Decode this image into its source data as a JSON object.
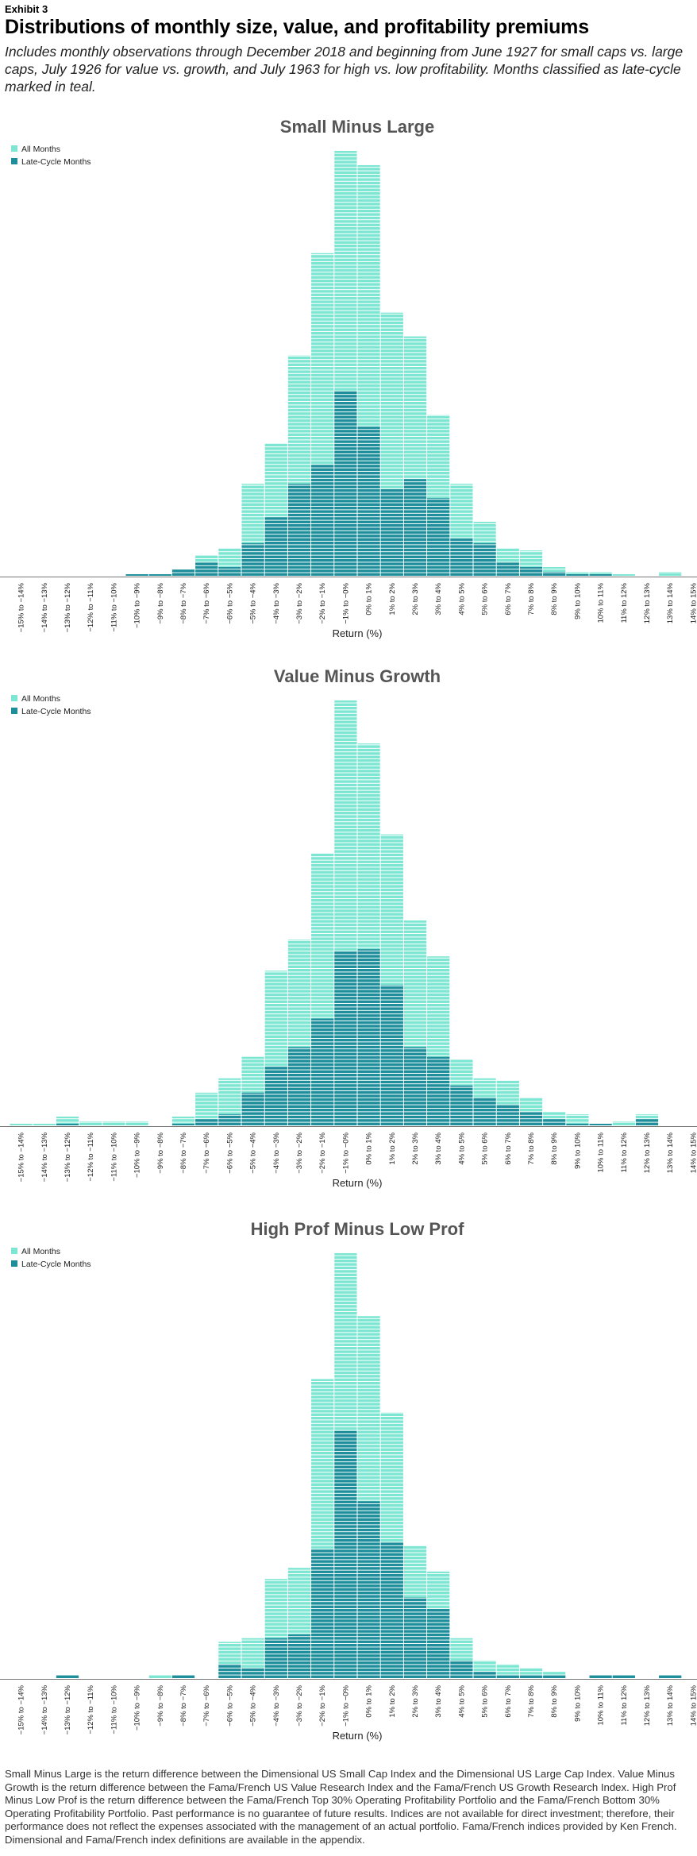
{
  "header": {
    "exhibit": "Exhibit 3",
    "title": "Distributions of monthly size, value, and profitability premiums",
    "subtitle": "Includes monthly observations through December 2018 and beginning from June 1927 for small caps vs. large caps, July 1926 for value vs. growth, and July 1963 for high vs. low profitability. Months classified as late-cycle marked in teal."
  },
  "colors": {
    "all": "#7ce6d2",
    "late": "#1f8e9b",
    "axis": "#777777",
    "title": "#555555"
  },
  "footnote": "Small Minus Large is the return difference between the Dimensional US Small Cap Index and the Dimensional US Large Cap Index. Value Minus Growth is the return difference between the Fama/French US Value Research Index and the Fama/French US Growth Research Index. High Prof Minus Low Prof is the return difference between the Fama/French Top 30% Operating Profitability Portfolio and the Fama/French Bottom 30% Operating Profitability Portfolio. Past performance is no guarantee of future results. Indices are not available for direct investment; therefore, their performance does not reflect the expenses associated with the management of an actual portfolio. Fama/French indices provided by Ken French. Dimensional and Fama/French index definitions are available in the appendix.",
  "chart_data": [
    {
      "type": "bar",
      "title": "Small Minus Large",
      "xlabel": "Return (%)",
      "legend": [
        "All Months",
        "Late-Cycle Months"
      ],
      "legend_position": "top-left",
      "categories": [
        "−15% to −14%",
        "−14% to −13%",
        "−13% to −12%",
        "−12% to −11%",
        "−11% to −10%",
        "−10% to −9%",
        "−9% to −8%",
        "−8% to −7%",
        "−7% to −6%",
        "−6% to −5%",
        "−5% to −4%",
        "−4% to −3%",
        "−3% to −2%",
        "−2% to −1%",
        "−1% to −0%",
        "0% to 1%",
        "1% to 2%",
        "2% to 3%",
        "3% to 4%",
        "4% to 5%",
        "5% to 6%",
        "6% to 7%",
        "7% to 8%",
        "8% to 9%",
        "9% to 10%",
        "10% to 11%",
        "11% to 12%",
        "12% to 13%",
        "13% to 14%",
        "14% to 15%"
      ],
      "series": [
        {
          "name": "All Months",
          "values": [
            0,
            0,
            0,
            0,
            0,
            1,
            1,
            3,
            9,
            12,
            39,
            56,
            93,
            136,
            179,
            173,
            111,
            101,
            68,
            39,
            23,
            12,
            11,
            4,
            2,
            2,
            1,
            0,
            2,
            0
          ]
        },
        {
          "name": "Late-Cycle Months",
          "values": [
            0,
            0,
            0,
            0,
            0,
            1,
            1,
            3,
            6,
            4,
            14,
            25,
            39,
            47,
            78,
            63,
            37,
            41,
            33,
            16,
            14,
            6,
            4,
            2,
            1,
            1,
            0,
            0,
            0,
            0
          ]
        }
      ]
    },
    {
      "type": "bar",
      "title": "Value Minus Growth",
      "xlabel": "Return (%)",
      "legend": [
        "All Months",
        "Late-Cycle Months"
      ],
      "legend_position": "top-left",
      "categories": [
        "−15% to −14%",
        "−14% to −13%",
        "−13% to −12%",
        "−12% to −11%",
        "−11% to −10%",
        "−10% to −9%",
        "−9% to −8%",
        "−8% to −7%",
        "−7% to −6%",
        "−6% to −5%",
        "−5% to −4%",
        "−4% to −3%",
        "−3% to −2%",
        "−2% to −1%",
        "−1% to −0%",
        "0% to 1%",
        "1% to 2%",
        "2% to 3%",
        "3% to 4%",
        "4% to 5%",
        "5% to 6%",
        "6% to 7%",
        "7% to 8%",
        "8% to 9%",
        "9% to 10%",
        "10% to 11%",
        "11% to 12%",
        "12% to 13%",
        "13% to 14%",
        "14% to 15%"
      ],
      "series": [
        {
          "name": "All Months",
          "values": [
            1,
            1,
            4,
            2,
            2,
            2,
            0,
            4,
            14,
            20,
            29,
            65,
            78,
            114,
            178,
            160,
            122,
            86,
            71,
            28,
            20,
            19,
            12,
            6,
            5,
            1,
            2,
            5,
            0,
            0
          ]
        },
        {
          "name": "Late-Cycle Months",
          "values": [
            0,
            0,
            1,
            0,
            0,
            0,
            0,
            1,
            3,
            5,
            14,
            25,
            33,
            45,
            73,
            74,
            59,
            33,
            29,
            17,
            12,
            9,
            6,
            3,
            1,
            1,
            0,
            3,
            0,
            0
          ]
        }
      ]
    },
    {
      "type": "bar",
      "title": "High Prof Minus Low Prof",
      "xlabel": "Return (%)",
      "legend": [
        "All Months",
        "Late-Cycle Months"
      ],
      "legend_position": "top-left",
      "categories": [
        "−15% to −14%",
        "−14% to −13%",
        "−13% to −12%",
        "−12% to −11%",
        "−11% to −10%",
        "−10% to −9%",
        "−9% to −8%",
        "−8% to −7%",
        "−7% to −6%",
        "−6% to −5%",
        "−5% to −4%",
        "−4% to −3%",
        "−3% to −2%",
        "−2% to −1%",
        "−1% to −0%",
        "0% to 1%",
        "1% to 2%",
        "2% to 3%",
        "3% to 4%",
        "4% to 5%",
        "5% to 6%",
        "6% to 7%",
        "7% to 8%",
        "8% to 9%",
        "9% to 10%",
        "10% to 11%",
        "11% to 12%",
        "12% to 13%",
        "13% to 14%",
        "14% to 15%"
      ],
      "series": [
        {
          "name": "All Months",
          "values": [
            0,
            0,
            1,
            0,
            0,
            0,
            1,
            1,
            0,
            10,
            11,
            27,
            30,
            81,
            115,
            98,
            72,
            36,
            29,
            11,
            5,
            4,
            3,
            2,
            0,
            1,
            1,
            0,
            1,
            0
          ]
        },
        {
          "name": "Late-Cycle Months",
          "values": [
            0,
            0,
            1,
            0,
            0,
            0,
            0,
            1,
            0,
            4,
            3,
            11,
            12,
            35,
            67,
            48,
            37,
            22,
            19,
            5,
            2,
            1,
            1,
            1,
            0,
            1,
            1,
            0,
            1,
            0
          ]
        }
      ]
    }
  ]
}
